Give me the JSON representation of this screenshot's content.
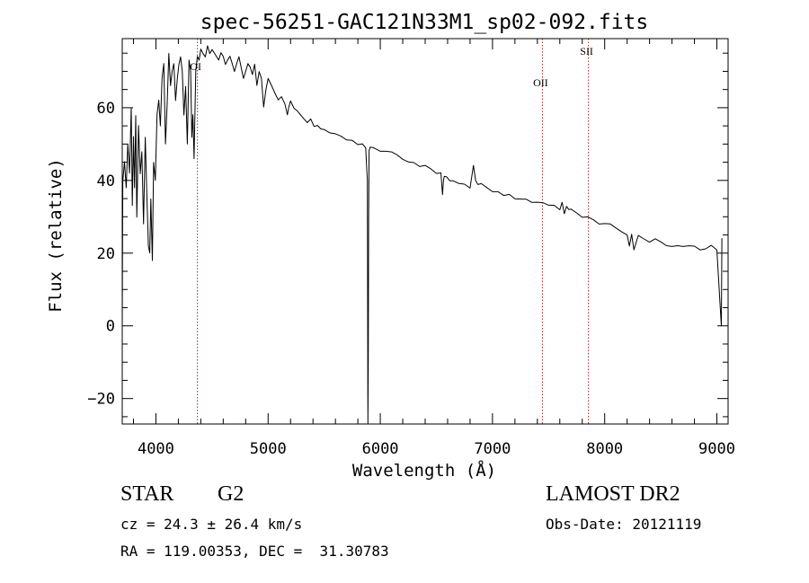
{
  "chart_data": {
    "type": "line",
    "title": "spec-56251-GAC121N33M1_sp02-092.fits",
    "xlabel": "Wavelength (Å)",
    "ylabel": "Flux (relative)",
    "xlim": [
      3700,
      9100
    ],
    "ylim": [
      -27,
      79
    ],
    "xticks": [
      4000,
      5000,
      6000,
      7000,
      8000,
      9000
    ],
    "yticks": [
      -20,
      0,
      20,
      40,
      60
    ],
    "grid": false,
    "line_color": "#000000",
    "marker_color": "#b22222",
    "series": [
      {
        "x": [
          3700,
          3705,
          3720,
          3735,
          3750,
          3765,
          3780,
          3790,
          3800,
          3810,
          3820,
          3830,
          3845,
          3860,
          3875,
          3890,
          3905,
          3920,
          3933,
          3945,
          3955,
          3968,
          3980,
          3995,
          4010,
          4025,
          4040,
          4055,
          4070,
          4085,
          4101,
          4115,
          4130,
          4145,
          4160,
          4175,
          4190,
          4205,
          4220,
          4235,
          4250,
          4265,
          4280,
          4295,
          4310,
          4320,
          4330,
          4340,
          4355,
          4370,
          4385,
          4400,
          4420,
          4440,
          4460,
          4480,
          4500,
          4520,
          4540,
          4560,
          4580,
          4600,
          4620,
          4640,
          4660,
          4680,
          4700,
          4720,
          4740,
          4760,
          4780,
          4800,
          4820,
          4840,
          4860,
          4880,
          4900,
          4920,
          4940,
          4960,
          4980,
          5000,
          5030,
          5060,
          5090,
          5120,
          5150,
          5172,
          5184,
          5200,
          5230,
          5260,
          5290,
          5320,
          5350,
          5380,
          5410,
          5440,
          5470,
          5500,
          5550,
          5600,
          5650,
          5700,
          5750,
          5800,
          5840,
          5870,
          5885,
          5890,
          5893,
          5896,
          5900,
          5910,
          5940,
          6000,
          6050,
          6100,
          6150,
          6200,
          6250,
          6300,
          6350,
          6400,
          6450,
          6500,
          6540,
          6555,
          6563,
          6570,
          6590,
          6620,
          6650,
          6700,
          6750,
          6800,
          6830,
          6850,
          6870,
          6900,
          6950,
          7000,
          7050,
          7100,
          7150,
          7200,
          7250,
          7300,
          7350,
          7400,
          7450,
          7500,
          7550,
          7600,
          7620,
          7640,
          7660,
          7680,
          7700,
          7750,
          7800,
          7850,
          7900,
          7950,
          8000,
          8050,
          8100,
          8150,
          8200,
          8220,
          8240,
          8260,
          8300,
          8350,
          8400,
          8450,
          8500,
          8550,
          8600,
          8650,
          8700,
          8750,
          8800,
          8850,
          8900,
          8950,
          9000,
          9030,
          9040,
          9045
        ],
        "y": [
          0,
          40,
          45,
          38,
          50,
          42,
          60,
          33,
          52,
          38,
          58,
          30,
          55,
          42,
          48,
          28,
          52,
          35,
          22,
          20,
          35,
          18,
          45,
          40,
          58,
          62,
          55,
          68,
          72,
          50,
          62,
          75,
          66,
          70,
          72,
          62,
          68,
          72,
          74,
          70,
          58,
          66,
          50,
          73,
          70,
          52,
          58,
          46,
          70,
          74,
          73,
          76,
          75,
          74,
          77,
          75,
          76,
          75,
          74,
          73,
          75,
          74,
          72,
          73,
          74,
          72,
          70,
          72,
          74,
          71,
          68,
          70,
          72,
          71,
          69,
          72,
          66,
          70,
          68,
          60,
          65,
          68,
          66,
          64,
          62,
          63,
          61,
          58,
          60,
          62,
          60,
          59,
          58,
          57,
          56,
          57,
          55,
          55,
          54,
          54,
          53,
          53,
          52,
          51,
          51,
          50,
          50,
          49,
          40,
          -27,
          -10,
          30,
          48,
          49,
          49,
          48,
          48,
          48,
          47,
          46,
          45,
          45,
          44,
          44,
          43,
          42,
          42,
          36,
          40,
          41,
          41,
          40,
          40,
          39,
          39,
          38,
          44,
          40,
          39,
          39,
          38,
          37,
          37,
          36,
          36,
          35,
          35,
          35,
          34,
          34,
          34,
          33,
          33,
          32,
          34,
          31,
          33,
          32,
          32,
          31,
          30,
          30,
          29,
          28,
          28,
          28,
          27,
          26,
          25,
          22,
          25,
          21,
          25,
          24,
          23,
          24,
          23,
          22,
          22,
          22,
          22,
          22,
          22,
          21,
          21,
          22,
          21,
          5,
          0,
          24
        ]
      }
    ],
    "line_markers": [
      {
        "label": "OI",
        "x": 4370
      },
      {
        "label": "OII",
        "x": 7445
      },
      {
        "label": "SII",
        "x": 7855
      }
    ]
  },
  "info": {
    "object_class": "STAR",
    "subclass": "G2",
    "survey": "LAMOST DR2",
    "redshift": "cz = 24.3 ± 26.4 km/s",
    "obs_date": "Obs-Date: 20121119",
    "coords": "RA = 119.00353, DEC =  31.30783"
  }
}
